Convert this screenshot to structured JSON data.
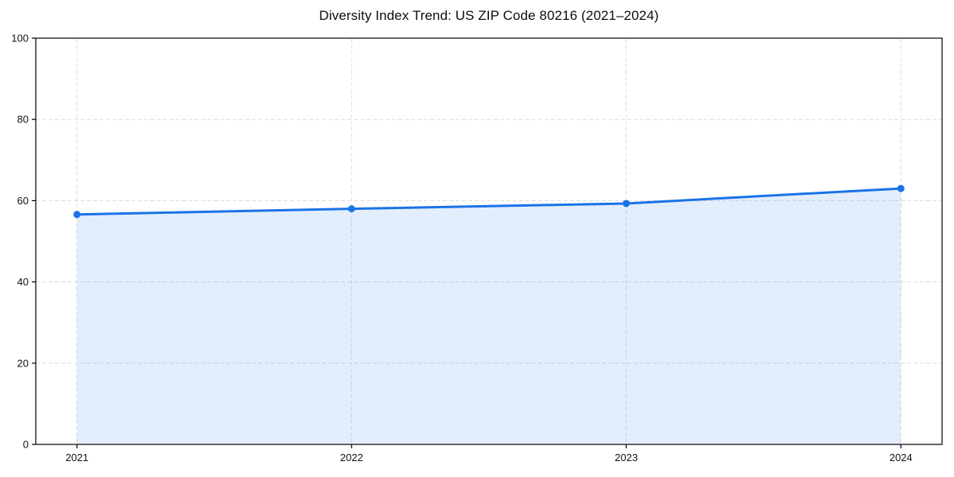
{
  "chart_data": {
    "type": "line",
    "title": "Diversity Index Trend: US ZIP Code 80216 (2021–2024)",
    "x": [
      2021,
      2022,
      2023,
      2024
    ],
    "series": [
      {
        "name": "Diversity Index",
        "values": [
          56.6,
          58.0,
          59.3,
          63.0
        ]
      }
    ],
    "xlabel": "",
    "ylabel": "",
    "xlim": [
      2020.85,
      2024.15
    ],
    "ylim": [
      0,
      100
    ],
    "xticks": [
      2021,
      2022,
      2023,
      2024
    ],
    "yticks": [
      0,
      20,
      40,
      60,
      80,
      100
    ],
    "grid": "dashed-both",
    "legend": "none",
    "area_fill_under_line": true,
    "marker": "circle",
    "colors": {
      "line": "#1a73e8",
      "marker": "#1a73e8",
      "fill": "rgba(26,115,232,0.12)",
      "grid": "#dcdcdc",
      "spine": "#000000",
      "tick": "#000000",
      "tick_text": "#111111",
      "background": "#ffffff"
    }
  }
}
